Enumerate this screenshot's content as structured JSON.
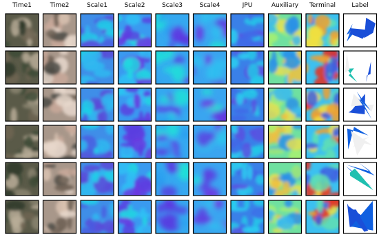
{
  "columns": [
    "Time1",
    "Time2",
    "Scale1",
    "Scale2",
    "Scale3",
    "Scale4",
    "JPU",
    "Auxiliary",
    "Terminal",
    "Label"
  ]
}
